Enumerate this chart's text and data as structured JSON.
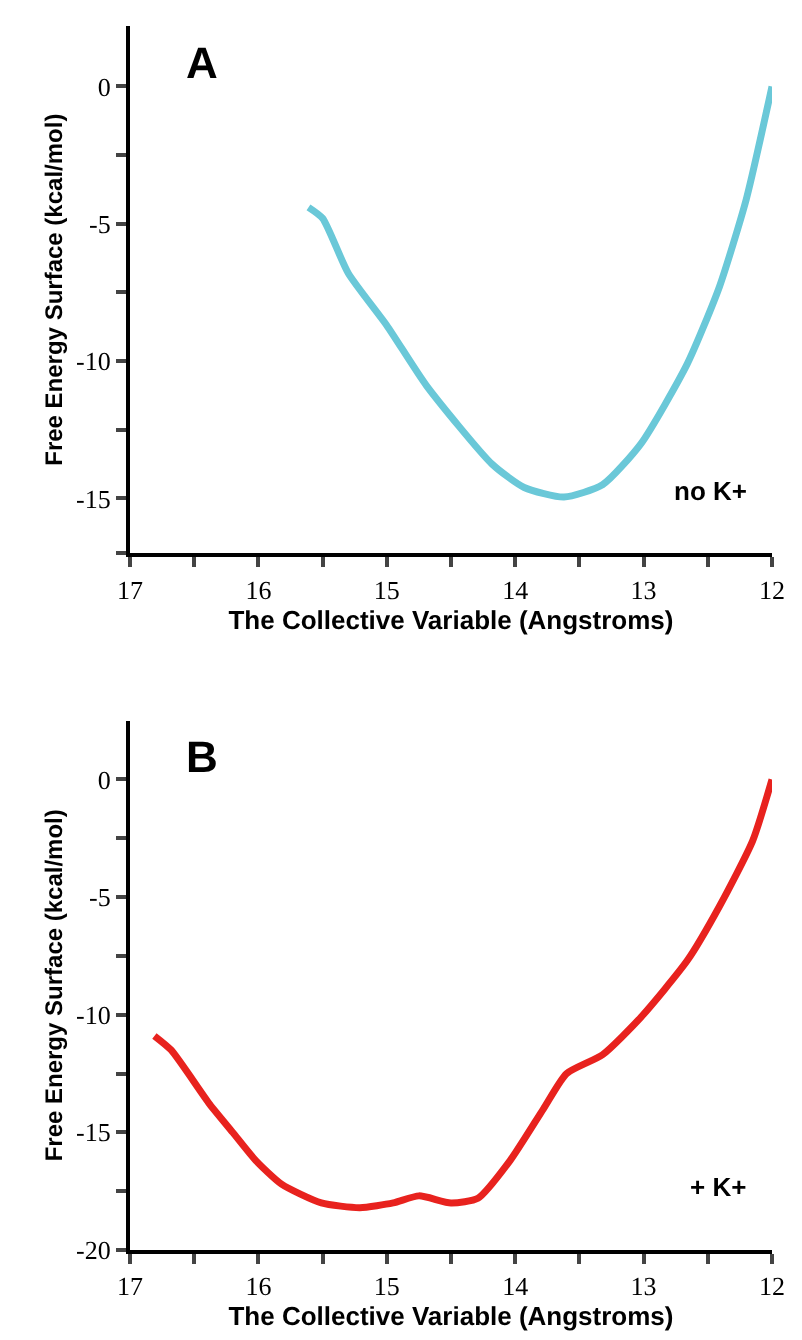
{
  "chart_data": [
    {
      "type": "line",
      "title": "A",
      "xlabel": "The Collective Variable (Angstroms)",
      "ylabel": "Free Energy Surface (kcal/mol)",
      "annotations": [
        "no K+"
      ],
      "xlim": [
        17,
        12
      ],
      "xticks": [
        17,
        {
          "value": 16.5,
          "label": null
        },
        16,
        {
          "value": 15.5,
          "label": null
        },
        15,
        {
          "value": 14.5,
          "label": null
        },
        14,
        {
          "value": 13.5,
          "label": null
        },
        13,
        {
          "value": 12.5,
          "label": null
        },
        12
      ],
      "ylim": [
        -17,
        2.2
      ],
      "yticks": [
        {
          "value": -17,
          "label": null
        },
        -15,
        {
          "value": -12.5,
          "label": null
        },
        -10,
        {
          "value": -7.5,
          "label": null
        },
        -5,
        {
          "value": -2.5,
          "label": null
        },
        0
      ],
      "marker": "none",
      "line_style": "solid",
      "series": [
        {
          "color": "#6ac8d8",
          "x": [
            15.61,
            15.5,
            15.3,
            15.0,
            14.69,
            14.18,
            13.93,
            13.62,
            13.32,
            13.02,
            12.66,
            12.41,
            12.2,
            12.0
          ],
          "values": [
            -4.4,
            -4.8,
            -6.8,
            -8.7,
            -10.9,
            -13.75,
            -14.6,
            -14.95,
            -14.5,
            -13.0,
            -10.1,
            -7.3,
            -4.1,
            0
          ]
        }
      ]
    },
    {
      "type": "line",
      "title": "B",
      "xlabel": "The Collective Variable (Angstroms)",
      "ylabel": "Free Energy Surface (kcal/mol)",
      "annotations": [
        "+ K+"
      ],
      "xlim": [
        17,
        12
      ],
      "xticks": [
        17,
        {
          "value": 16.5,
          "label": null
        },
        16,
        {
          "value": 15.5,
          "label": null
        },
        15,
        {
          "value": 14.5,
          "label": null
        },
        14,
        {
          "value": 13.5,
          "label": null
        },
        13,
        {
          "value": 12.5,
          "label": null
        },
        12
      ],
      "ylim": [
        -20,
        2.5
      ],
      "yticks": [
        -20,
        {
          "value": -17.5,
          "label": null
        },
        -15,
        {
          "value": -12.5,
          "label": null
        },
        -10,
        {
          "value": -7.5,
          "label": null
        },
        -5,
        {
          "value": -2.5,
          "label": null
        },
        0
      ],
      "marker": "none",
      "line_style": "solid",
      "series": [
        {
          "color": "#e8221e",
          "x": [
            16.81,
            16.68,
            16.38,
            16.2,
            16.02,
            15.82,
            15.51,
            15.21,
            14.95,
            14.75,
            14.5,
            14.29,
            14.04,
            13.78,
            13.6,
            13.32,
            13.02,
            12.66,
            12.41,
            12.15,
            12.0
          ],
          "values": [
            -10.9,
            -11.5,
            -13.8,
            -15.0,
            -16.2,
            -17.2,
            -18.0,
            -18.2,
            -18.0,
            -17.7,
            -18.0,
            -17.8,
            -16.2,
            -14.0,
            -12.5,
            -11.7,
            -10.1,
            -7.7,
            -5.4,
            -2.6,
            0
          ]
        }
      ]
    }
  ]
}
